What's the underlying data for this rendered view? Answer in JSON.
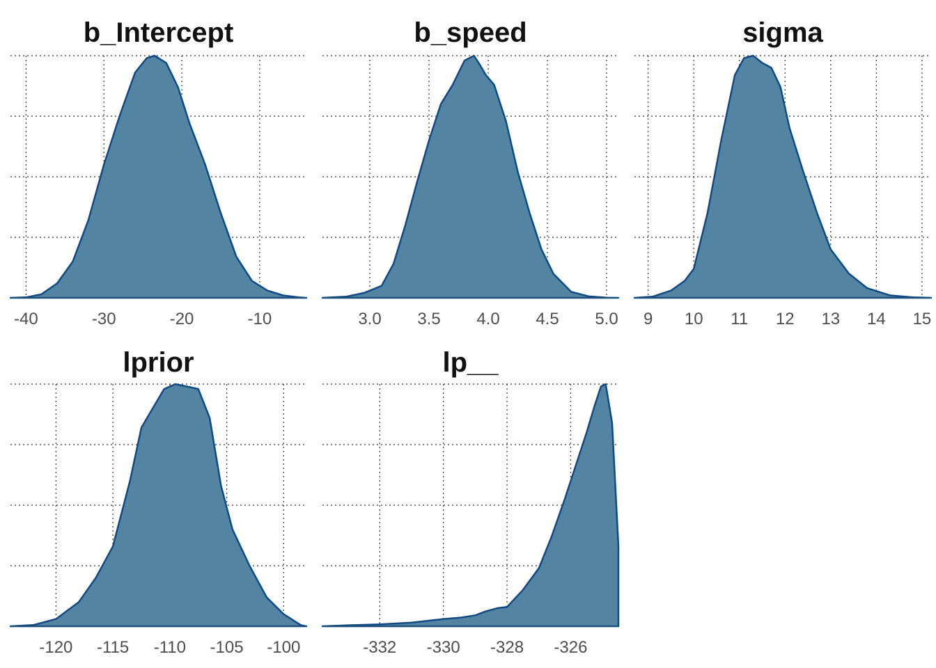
{
  "colors": {
    "fill": "#5384a2",
    "line": "#0f4a85",
    "grid": "#333333",
    "tick_text": "#4d4d4d",
    "title_text": "#111111"
  },
  "chart_data": [
    {
      "type": "area",
      "title": "b_Intercept",
      "xlim": [
        -42,
        -4
      ],
      "xticks": [
        -40,
        -30,
        -20,
        -10
      ],
      "xtick_labels": [
        "-40",
        "-30",
        "-20",
        "-10"
      ],
      "grid": true,
      "x": [
        -42,
        -40,
        -38,
        -36,
        -34,
        -32,
        -30,
        -28,
        -26,
        -24.5,
        -23.5,
        -22,
        -20.5,
        -19,
        -17,
        -15,
        -13,
        -11,
        -9,
        -7,
        -5,
        -4
      ],
      "y": [
        0,
        0.002,
        0.015,
        0.06,
        0.15,
        0.32,
        0.55,
        0.75,
        0.93,
        0.99,
        1.0,
        0.97,
        0.87,
        0.72,
        0.55,
        0.35,
        0.17,
        0.07,
        0.03,
        0.01,
        0.002,
        0
      ]
    },
    {
      "type": "area",
      "title": "b_speed",
      "xlim": [
        2.6,
        5.1
      ],
      "xticks": [
        3.0,
        3.5,
        4.0,
        4.5,
        5.0
      ],
      "xtick_labels": [
        "3.0",
        "3.5",
        "4.0",
        "4.5",
        "5.0"
      ],
      "grid": true,
      "x": [
        2.6,
        2.8,
        2.95,
        3.0,
        3.1,
        3.2,
        3.3,
        3.4,
        3.5,
        3.6,
        3.7,
        3.8,
        3.88,
        3.92,
        3.98,
        4.05,
        4.15,
        4.25,
        4.35,
        4.45,
        4.55,
        4.7,
        4.85,
        5.0,
        5.1
      ],
      "y": [
        0,
        0.005,
        0.02,
        0.03,
        0.05,
        0.14,
        0.3,
        0.48,
        0.65,
        0.8,
        0.88,
        0.98,
        1.0,
        0.97,
        0.92,
        0.88,
        0.73,
        0.52,
        0.35,
        0.2,
        0.1,
        0.025,
        0.006,
        0.001,
        0
      ]
    },
    {
      "type": "area",
      "title": "sigma",
      "xlim": [
        8.7,
        15.2
      ],
      "xticks": [
        9,
        10,
        11,
        12,
        13,
        14,
        15
      ],
      "xtick_labels": [
        "9",
        "10",
        "11",
        "12",
        "13",
        "14",
        "15"
      ],
      "grid": true,
      "x": [
        8.7,
        9.1,
        9.5,
        9.8,
        10.0,
        10.3,
        10.6,
        10.9,
        11.1,
        11.3,
        11.5,
        11.7,
        11.9,
        12.1,
        12.4,
        12.7,
        13.0,
        13.4,
        13.8,
        14.3,
        14.8,
        15.2
      ],
      "y": [
        0,
        0.005,
        0.03,
        0.07,
        0.12,
        0.35,
        0.65,
        0.92,
        0.99,
        1.0,
        0.97,
        0.95,
        0.87,
        0.7,
        0.52,
        0.35,
        0.2,
        0.1,
        0.04,
        0.01,
        0.002,
        0
      ]
    },
    {
      "type": "area",
      "title": "lprior",
      "xlim": [
        -124,
        -98
      ],
      "xticks": [
        -120,
        -115,
        -110,
        -105,
        -100
      ],
      "xtick_labels": [
        "-120",
        "-115",
        "-110",
        "-105",
        "-100"
      ],
      "grid": true,
      "x": [
        -124,
        -122,
        -120,
        -118,
        -116.5,
        -115,
        -113.5,
        -112.5,
        -111.5,
        -110.5,
        -109.5,
        -108.5,
        -107.5,
        -106.5,
        -105.5,
        -104.5,
        -103,
        -101.5,
        -100,
        -98.5,
        -98
      ],
      "y": [
        0,
        0.005,
        0.03,
        0.1,
        0.2,
        0.33,
        0.6,
        0.82,
        0.9,
        0.98,
        1.0,
        0.99,
        0.98,
        0.86,
        0.58,
        0.4,
        0.25,
        0.12,
        0.05,
        0.005,
        0
      ]
    },
    {
      "type": "area",
      "title": "lp__",
      "xlim": [
        -333.8,
        -324.5
      ],
      "xticks": [
        -332,
        -330,
        -328,
        -326
      ],
      "xtick_labels": [
        "-332",
        "-330",
        "-328",
        "-326"
      ],
      "grid": true,
      "x": [
        -333.8,
        -333,
        -332,
        -331,
        -330,
        -329.5,
        -329,
        -328.7,
        -328.3,
        -328,
        -327.5,
        -327,
        -326.6,
        -326.2,
        -325.8,
        -325.5,
        -325.25,
        -325.05,
        -324.9,
        -324.7,
        -324.5
      ],
      "y": [
        0,
        0.004,
        0.008,
        0.015,
        0.03,
        0.035,
        0.045,
        0.06,
        0.075,
        0.08,
        0.15,
        0.24,
        0.37,
        0.52,
        0.68,
        0.8,
        0.91,
        0.99,
        1.0,
        0.84,
        0.33
      ]
    }
  ]
}
